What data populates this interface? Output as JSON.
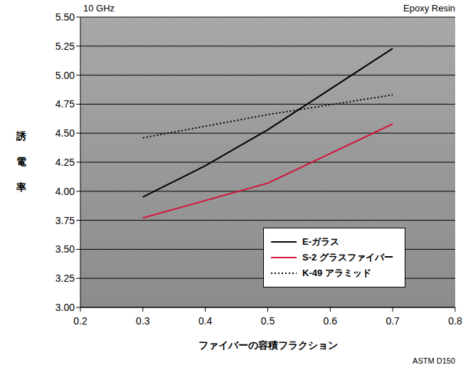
{
  "chart_data": {
    "type": "line",
    "annotations": [
      "10 GHz",
      "Epoxy Resin",
      "ASTM D150"
    ],
    "x_label": "ファイバーの容積フラクション",
    "y_label": "誘 電 率",
    "series": [
      {
        "name": "E-ガラス",
        "color": "#000000",
        "line_style": "solid",
        "x": [
          0.3,
          0.4,
          0.5,
          0.7
        ],
        "values": [
          3.95,
          4.22,
          4.53,
          5.23
        ]
      },
      {
        "name": "S-2 グラスファイバー",
        "color": "#d4143a",
        "line_style": "solid",
        "x": [
          0.3,
          0.5,
          0.7
        ],
        "values": [
          3.77,
          4.07,
          4.58
        ]
      },
      {
        "name": "K-49 アラミッド",
        "color": "#000000",
        "line_style": "dotted",
        "x": [
          0.3,
          0.5,
          0.7
        ],
        "values": [
          4.46,
          4.66,
          4.83
        ]
      }
    ],
    "xlim": [
      0.2,
      0.8
    ],
    "xticks": [
      0.2,
      0.3,
      0.4,
      0.5,
      0.6,
      0.7,
      0.8
    ],
    "ylim": [
      3.0,
      5.5
    ],
    "yticks": [
      {
        "value": 3.0,
        "label": "3.00"
      },
      3.25,
      {
        "value": 3.5,
        "label": "3.50"
      },
      3.75,
      {
        "value": 4.0,
        "label": "4.00"
      },
      4.25,
      {
        "value": 4.5,
        "label": "4.50"
      },
      4.75,
      {
        "value": 5.0,
        "label": "5.00"
      },
      5.25,
      {
        "value": 5.5,
        "label": "5.50"
      }
    ],
    "grid": true,
    "legend": "lower right"
  }
}
